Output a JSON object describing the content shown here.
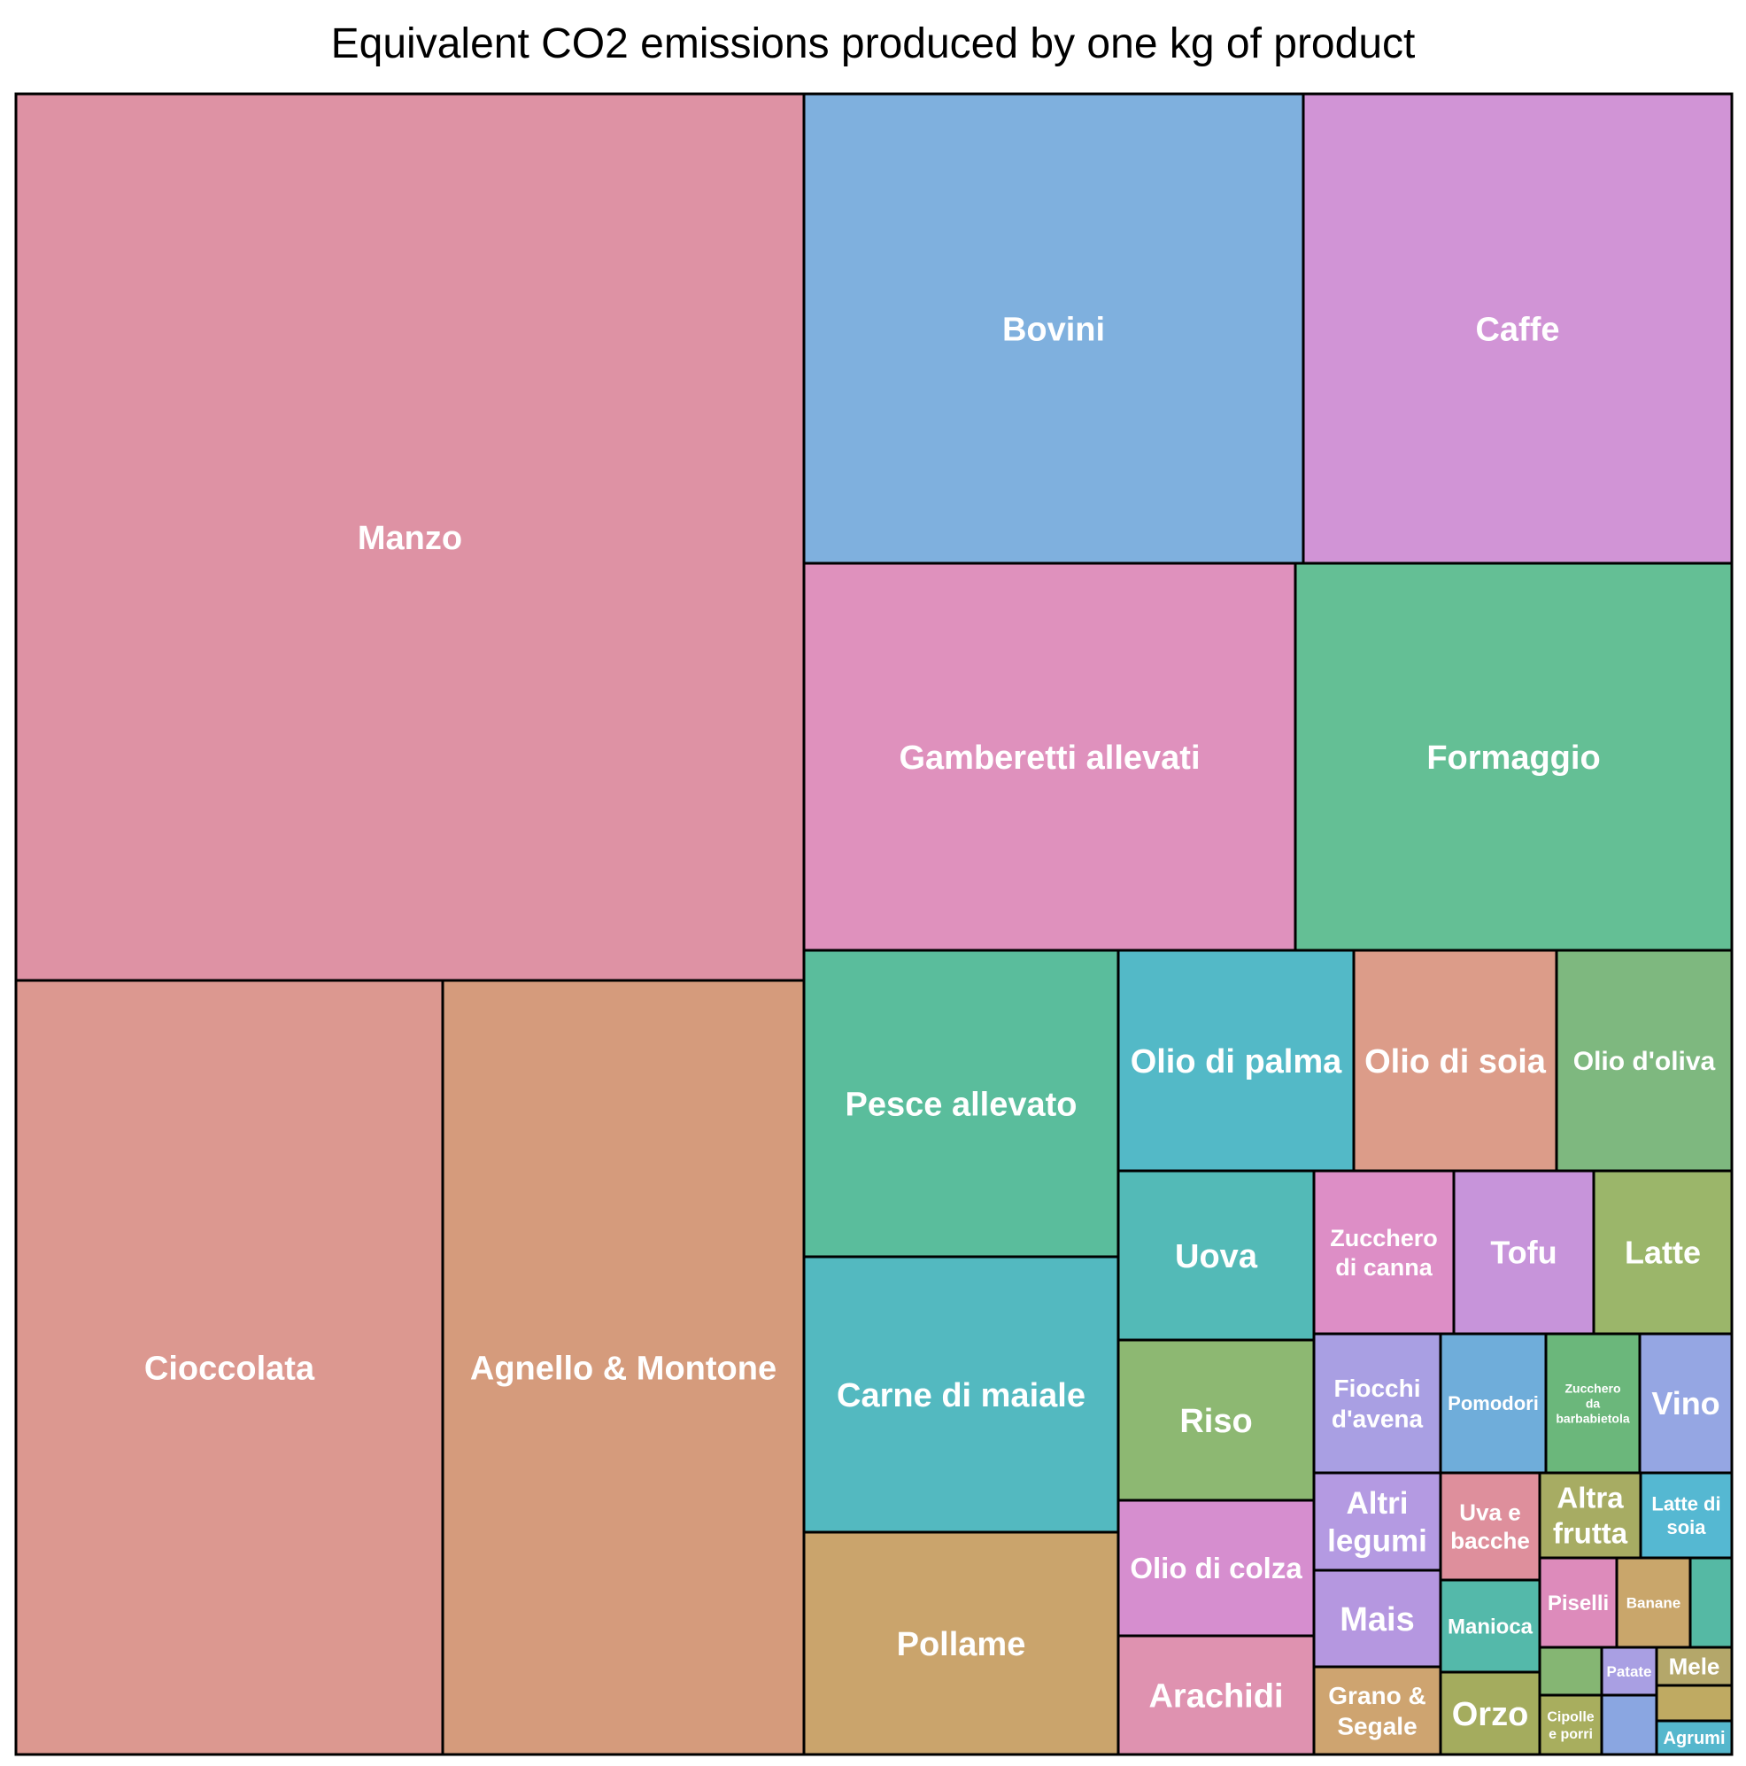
{
  "chart_data": {
    "type": "treemap",
    "title": "Equivalent CO2 emissions produced by one kg of product",
    "items": [
      {
        "label": "Manzo",
        "value": 60,
        "color": "#de92a4"
      },
      {
        "label": "Cioccolata",
        "value": 34,
        "color": "#dc9890"
      },
      {
        "label": "Agnello & Montone",
        "value": 24,
        "color": "#d59b7c"
      },
      {
        "label": "Bovini",
        "value": 21,
        "color": "#7fb0de"
      },
      {
        "label": "Caffe",
        "value": 17,
        "color": "#d194d6"
      },
      {
        "label": "Gamberetti allevati",
        "value": 12,
        "color": "#df91bd"
      },
      {
        "label": "Formaggio",
        "value": 11,
        "color": "#64bf95"
      },
      {
        "label": "Pesce allevato",
        "value": 5,
        "color": "#5abd9c"
      },
      {
        "label": "Carne di maiale",
        "value": 7,
        "color": "#53b9c0"
      },
      {
        "label": "Pollame",
        "value": 6,
        "color": "#caa46c"
      },
      {
        "label": "Olio di palma",
        "value": 7.3,
        "color": "#53b9c7"
      },
      {
        "label": "Olio di soia",
        "value": 6.3,
        "color": "#dc9c89"
      },
      {
        "label": "Olio d'oliva",
        "value": 5.4,
        "color": "#7eb87f"
      },
      {
        "label": "Uova",
        "value": 4.5,
        "color": "#53bab7"
      },
      {
        "label": "Riso",
        "value": 4,
        "color": "#8db872"
      },
      {
        "label": "Olio di colza",
        "value": 3.7,
        "color": "#d68ecf"
      },
      {
        "label": "Arachidi",
        "value": 2.5,
        "color": "#df92b0"
      },
      {
        "label": "Zucchero di canna",
        "value": 2.6,
        "color": "#dd8ec6"
      },
      {
        "label": "Tofu",
        "value": 3,
        "color": "#c794da"
      },
      {
        "label": "Latte",
        "value": 2.8,
        "color": "#9bb66a"
      },
      {
        "label": "Fiocchi d'avena",
        "value": 2.5,
        "color": "#a99fe3"
      },
      {
        "label": "Pomodori",
        "value": 2.1,
        "color": "#6fadda"
      },
      {
        "label": "Zucchero da barbabietola",
        "value": 1.8,
        "color": "#6bb77b"
      },
      {
        "label": "Vino",
        "value": 1.8,
        "color": "#95a6e3"
      },
      {
        "label": "Altri legumi",
        "value": 1.7,
        "color": "#b49ae2"
      },
      {
        "label": "Mais",
        "value": 1.7,
        "color": "#b597e0"
      },
      {
        "label": "Grano & Segale",
        "value": 1.4,
        "color": "#cea470"
      },
      {
        "label": "Uva e bacche",
        "value": 1.5,
        "color": "#de8f9c"
      },
      {
        "label": "Manioca",
        "value": 1.3,
        "color": "#54b9aa"
      },
      {
        "label": "Orzo",
        "value": 1.2,
        "color": "#a4ac5e"
      },
      {
        "label": "Altra frutta",
        "value": 1.1,
        "color": "#a7ac63"
      },
      {
        "label": "Latte di soia",
        "value": 0.9,
        "color": "#55b8d2"
      },
      {
        "label": "Piselli",
        "value": 0.9,
        "color": "#dd8bbb"
      },
      {
        "label": "Banane",
        "value": 0.8,
        "color": "#c9a66b"
      },
      {
        "label": "",
        "value": 0.5,
        "color": "#55b9a4"
      },
      {
        "label": "",
        "value": 0.5,
        "color": "#85b673"
      },
      {
        "label": "Patate",
        "value": 0.4,
        "color": "#a99fe3"
      },
      {
        "label": "Mele",
        "value": 0.4,
        "color": "#b4a76a"
      },
      {
        "label": "",
        "value": 0.4,
        "color": "#bfaa62"
      },
      {
        "label": "Cipolle e porri",
        "value": 0.5,
        "color": "#a8ae5e"
      },
      {
        "label": "",
        "value": 0.4,
        "color": "#8aa6e1"
      },
      {
        "label": "Agrumi",
        "value": 0.3,
        "color": "#55b7cd"
      }
    ]
  }
}
